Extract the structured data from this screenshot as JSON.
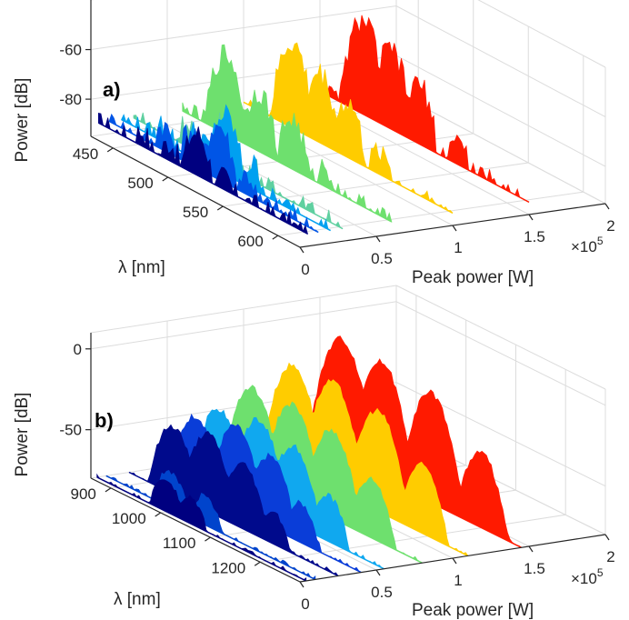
{
  "chart_data": [
    {
      "type": "area",
      "panel_label": "a)",
      "zlabel": "Power [dB]",
      "ylabel": "λ [nm]",
      "xlabel": "Peak power [W]",
      "x_multiplier": "×10",
      "x_multiplier_exp": "5",
      "x_ticks": [
        "0",
        "0.5",
        "1",
        "1.5",
        "2"
      ],
      "y_ticks": [
        "450",
        "500",
        "550",
        "600"
      ],
      "z_ticks": [
        "-60",
        "-80"
      ],
      "xlim": [
        0,
        2
      ],
      "ylim": [
        430,
        620
      ],
      "zlim": [
        -95,
        -40
      ],
      "series": [
        {
          "x": 0.05,
          "color": "#000080",
          "baseline": -90,
          "peaks": [
            [
              470,
              -84
            ],
            [
              495,
              -83
            ],
            [
              520,
              -73
            ],
            [
              545,
              -85
            ]
          ]
        },
        {
          "x": 0.12,
          "color": "#0055e6",
          "baseline": -90,
          "peaks": [
            [
              480,
              -80
            ],
            [
              505,
              -76
            ],
            [
              530,
              -68
            ],
            [
              555,
              -82
            ]
          ]
        },
        {
          "x": 0.2,
          "color": "#00a0f0",
          "baseline": -90,
          "peaks": [
            [
              470,
              -82
            ],
            [
              500,
              -78
            ],
            [
              525,
              -66
            ],
            [
              550,
              -80
            ]
          ]
        },
        {
          "x": 0.28,
          "color": "#5fd0a0",
          "baseline": -90,
          "peaks": [
            [
              480,
              -80
            ],
            [
              510,
              -74
            ],
            [
              540,
              -84
            ]
          ]
        },
        {
          "x": 0.6,
          "color": "#6ee06e",
          "baseline": -90,
          "peaks": [
            [
              470,
              -58
            ],
            [
              500,
              -66
            ],
            [
              530,
              -70
            ],
            [
              560,
              -82
            ]
          ]
        },
        {
          "x": 1.0,
          "color": "#ffcc00",
          "baseline": -90,
          "peaks": [
            [
              475,
              -56
            ],
            [
              500,
              -62
            ],
            [
              525,
              -68
            ],
            [
              555,
              -80
            ]
          ]
        },
        {
          "x": 1.5,
          "color": "#ff1a00",
          "baseline": -90,
          "peaks": [
            [
              470,
              -52
            ],
            [
              495,
              -58
            ],
            [
              520,
              -66
            ],
            [
              555,
              -80
            ]
          ]
        }
      ]
    },
    {
      "type": "area",
      "panel_label": "b)",
      "zlabel": "Power [dB]",
      "ylabel": "λ [nm]",
      "xlabel": "Peak power [W]",
      "x_multiplier": "×10",
      "x_multiplier_exp": "5",
      "x_ticks": [
        "0",
        "0.5",
        "1",
        "1.5",
        "2"
      ],
      "y_ticks": [
        "900",
        "1000",
        "1100",
        "1200"
      ],
      "z_ticks": [
        "0",
        "-50"
      ],
      "xlim": [
        0,
        2
      ],
      "ylim": [
        860,
        1280
      ],
      "zlim": [
        -80,
        10
      ],
      "series": [
        {
          "x": 0.04,
          "color": "#000080",
          "baseline": -80,
          "peaks": [
            [
              1000,
              -60
            ],
            [
              1050,
              -64
            ]
          ]
        },
        {
          "x": 0.1,
          "color": "#0044cc",
          "baseline": -80,
          "peaks": [
            [
              990,
              -58
            ],
            [
              1060,
              -62
            ]
          ]
        },
        {
          "x": 0.25,
          "color": "#000a8c",
          "baseline": -80,
          "peaks": [
            [
              950,
              -38
            ],
            [
              1020,
              -32
            ],
            [
              1090,
              -40
            ],
            [
              1150,
              -60
            ]
          ]
        },
        {
          "x": 0.4,
          "color": "#0a3dd8",
          "baseline": -80,
          "peaks": [
            [
              950,
              -34
            ],
            [
              1030,
              -28
            ],
            [
              1100,
              -36
            ],
            [
              1160,
              -56
            ]
          ]
        },
        {
          "x": 0.55,
          "color": "#10a8ef",
          "baseline": -80,
          "peaks": [
            [
              950,
              -32
            ],
            [
              1030,
              -26
            ],
            [
              1100,
              -32
            ],
            [
              1170,
              -52
            ]
          ]
        },
        {
          "x": 0.8,
          "color": "#6ee06e",
          "baseline": -80,
          "peaks": [
            [
              940,
              -24
            ],
            [
              1020,
              -22
            ],
            [
              1100,
              -26
            ],
            [
              1180,
              -44
            ]
          ]
        },
        {
          "x": 1.1,
          "color": "#ffcc00",
          "baseline": -80,
          "peaks": [
            [
              930,
              -16
            ],
            [
              1010,
              -14
            ],
            [
              1100,
              -18
            ],
            [
              1190,
              -38
            ]
          ]
        },
        {
          "x": 1.45,
          "color": "#ff1a00",
          "baseline": -80,
          "peaks": [
            [
              920,
              -6
            ],
            [
              1000,
              -8
            ],
            [
              1100,
              -12
            ],
            [
              1200,
              -34
            ]
          ]
        }
      ]
    }
  ]
}
